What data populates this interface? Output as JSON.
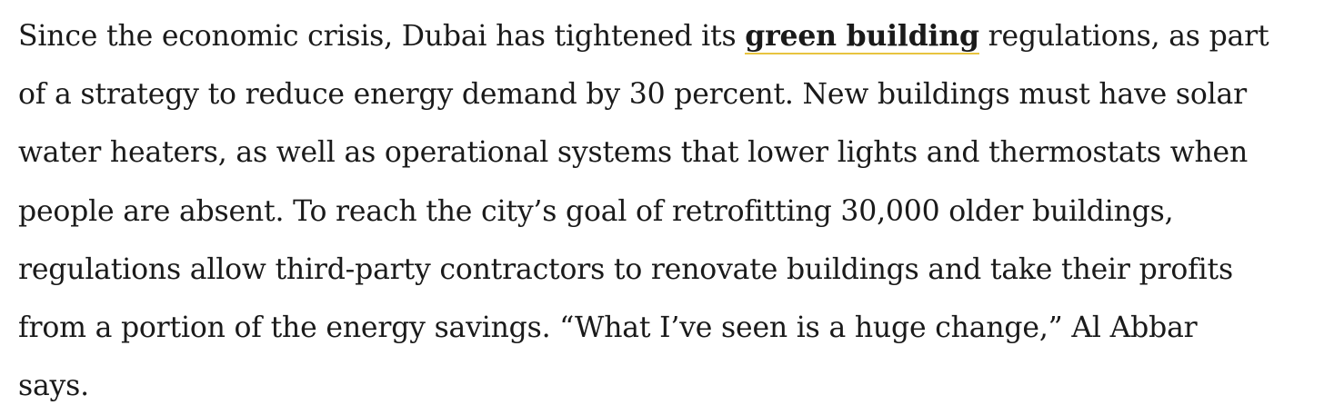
{
  "article": {
    "line1_before": "Since the economic crisis, Dubai has tightened its ",
    "link_text": "green building",
    "line1_after": " regulations, as part",
    "line2": "of a strategy to reduce energy demand by 30 percent. New buildings must have solar",
    "line3": "water heaters, as well as operational systems that lower lights and thermostats when",
    "line4": "people are absent. To reach the city’s goal of retrofitting 30,000 older buildings,",
    "line5": "regulations allow third-party contractors to renovate buildings and take their profits",
    "line6": "from a portion of the energy savings. “What I’ve seen is a huge change,” Al Abbar",
    "line7": "says."
  },
  "colors": {
    "text": "#1a1a1a",
    "link_underline": "#e8c440"
  }
}
